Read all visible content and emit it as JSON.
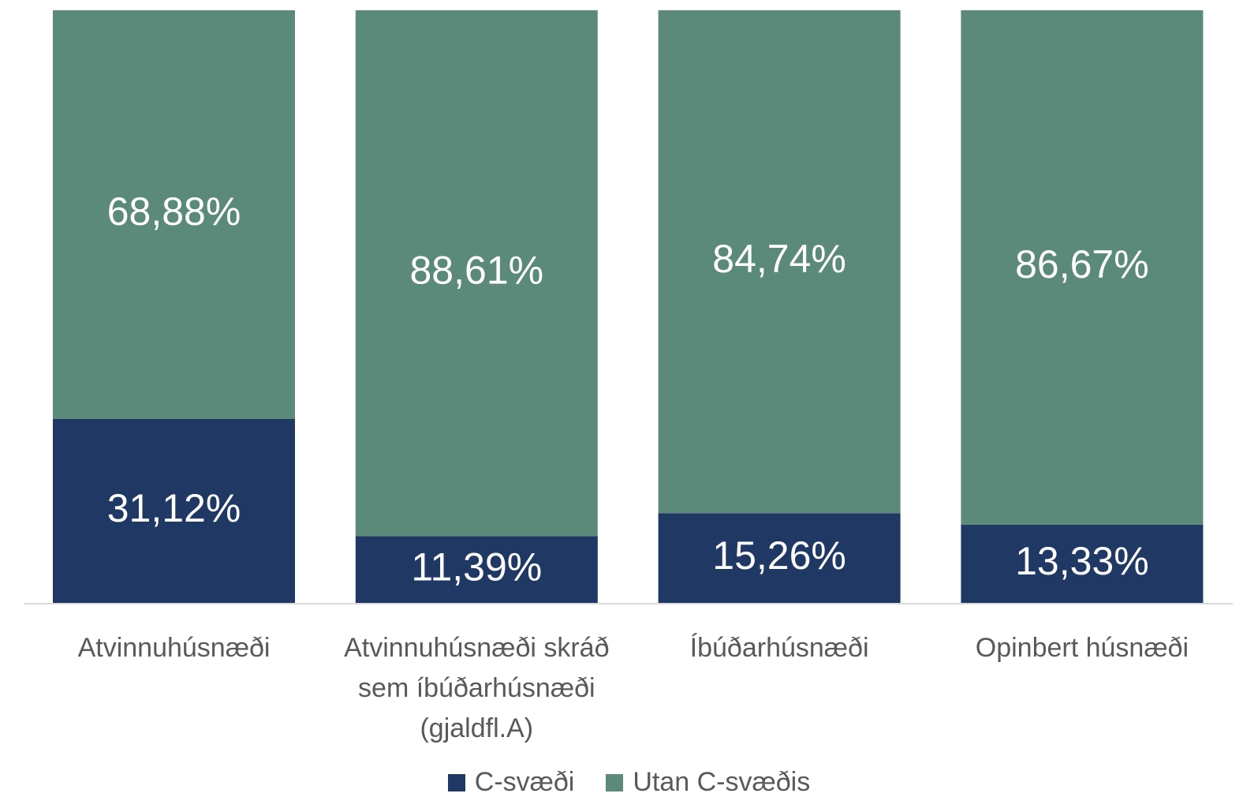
{
  "chart_data": {
    "type": "stacked_bar",
    "categories": [
      "Atvinnuhúsnæði",
      "Atvinnuhúsnæði skráð sem íbúðarhúsnæði (gjaldfl.A)",
      "Íbúðarhúsnæði",
      "Opinbert húsnæði"
    ],
    "series": [
      {
        "name": "C-svæði",
        "color": "#203864",
        "values": [
          31.12,
          11.39,
          15.26,
          13.33
        ],
        "value_labels": [
          "31,12%",
          "11,39%",
          "15,26%",
          "13,33%"
        ]
      },
      {
        "name": "Utan C-svæðis",
        "color": "#5b8a7a",
        "values": [
          68.88,
          88.61,
          84.74,
          86.67
        ],
        "value_labels": [
          "68,88%",
          "88,61%",
          "84,74%",
          "86,67%"
        ]
      }
    ],
    "ylim": [
      0,
      100
    ],
    "legend": "bottom"
  }
}
